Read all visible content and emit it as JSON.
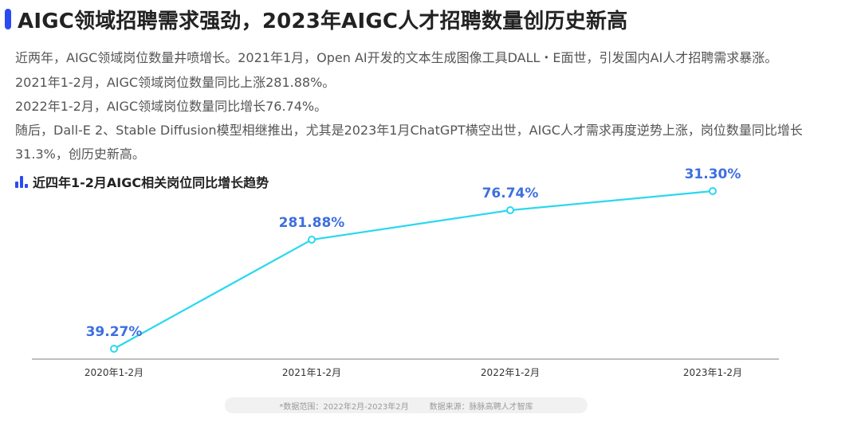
{
  "title": "AIGC领域招聘需求强劲，2023年AIGC人才招聘数量创历史新高",
  "paragraphs": [
    "近两年，AIGC领域岗位数量井喷增长。2021年1月，Open AI开发的文本生成图像工具DALL・E面世，引发国内AI人才招聘需求暴涨。",
    "2021年1-2月，AIGC领域岗位数量同比上涨281.88%。",
    "2022年1-2月，AIGC领域岗位数量同比增长76.74%。",
    "随后，Dall-E 2、Stable Diffusion模型相继推出，尤其是2023年1月ChatGPT横空出世，AIGC人才需求再度逆势上涨，岗位数量同比增长",
    "31.3%，创历史新高。"
  ],
  "colors": {
    "accent_blue": "#2b4bf2",
    "line": "#2ad8ee",
    "data_label": "#3d6fe0",
    "axis": "#999999"
  },
  "chart_data": {
    "type": "line",
    "title": "近四年1-2月AIGC相关岗位同比增长趋势",
    "categories": [
      "2020年1-2月",
      "2021年1-2月",
      "2022年1-2月",
      "2023年1-2月"
    ],
    "values": [
      39.27,
      281.88,
      76.74,
      31.3
    ],
    "data_labels": [
      "39.27%",
      "281.88%",
      "76.74%",
      "31.30%"
    ],
    "note": "plotted as rising trend line; vertical axis hidden"
  },
  "footnote": {
    "range": "*数据范围：2022年2月-2023年2月",
    "source": "数据来源：脉脉高聘人才智库"
  }
}
